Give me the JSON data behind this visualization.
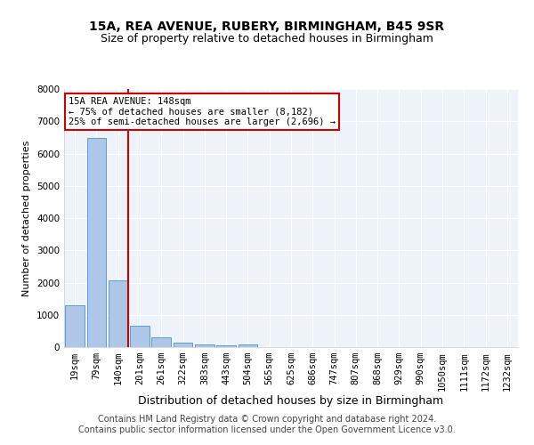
{
  "title1": "15A, REA AVENUE, RUBERY, BIRMINGHAM, B45 9SR",
  "title2": "Size of property relative to detached houses in Birmingham",
  "xlabel": "Distribution of detached houses by size in Birmingham",
  "ylabel": "Number of detached properties",
  "categories": [
    "19sqm",
    "79sqm",
    "140sqm",
    "201sqm",
    "261sqm",
    "322sqm",
    "383sqm",
    "443sqm",
    "504sqm",
    "565sqm",
    "625sqm",
    "686sqm",
    "747sqm",
    "807sqm",
    "868sqm",
    "929sqm",
    "990sqm",
    "1050sqm",
    "1111sqm",
    "1172sqm",
    "1232sqm"
  ],
  "values": [
    1310,
    6480,
    2060,
    670,
    290,
    130,
    80,
    60,
    90,
    0,
    0,
    0,
    0,
    0,
    0,
    0,
    0,
    0,
    0,
    0,
    0
  ],
  "bar_color": "#aec6e8",
  "bar_edge_color": "#5a9fd4",
  "vline_color": "#cc0000",
  "annotation_text": "15A REA AVENUE: 148sqm\n← 75% of detached houses are smaller (8,182)\n25% of semi-detached houses are larger (2,696) →",
  "annotation_box_color": "white",
  "annotation_box_edge_color": "#cc0000",
  "ylim": [
    0,
    8000
  ],
  "yticks": [
    0,
    1000,
    2000,
    3000,
    4000,
    5000,
    6000,
    7000,
    8000
  ],
  "footer1": "Contains HM Land Registry data © Crown copyright and database right 2024.",
  "footer2": "Contains public sector information licensed under the Open Government Licence v3.0.",
  "background_color": "#eef2f9",
  "grid_color": "#ffffff",
  "title1_fontsize": 10,
  "title2_fontsize": 9,
  "xlabel_fontsize": 9,
  "ylabel_fontsize": 8,
  "tick_fontsize": 7.5,
  "annotation_fontsize": 7.5,
  "footer_fontsize": 7
}
